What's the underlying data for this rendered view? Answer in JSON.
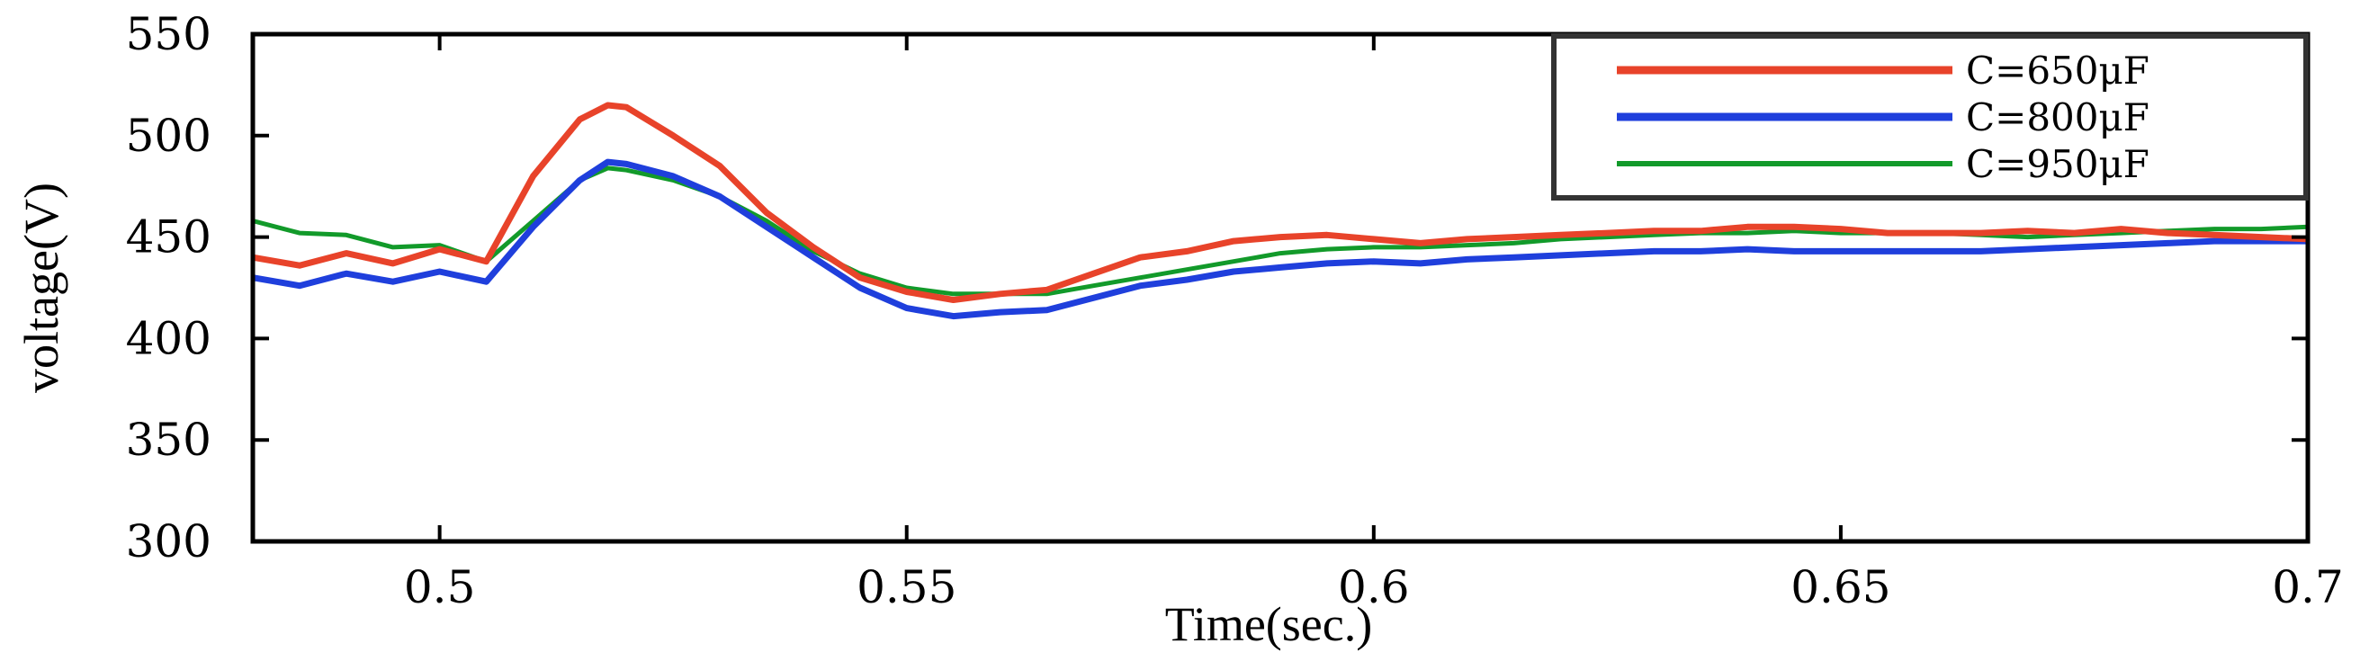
{
  "chart_data": {
    "type": "line",
    "title": "",
    "xlabel": "Time(sec.)",
    "ylabel": "voltage(V)",
    "xlim": [
      0.48,
      0.7
    ],
    "ylim": [
      300,
      550
    ],
    "xticks": [
      0.5,
      0.55,
      0.6,
      0.65,
      0.7
    ],
    "xtick_labels": [
      "0.5",
      "0.55",
      "0.6",
      "0.65",
      "0.7"
    ],
    "yticks": [
      300,
      350,
      400,
      450,
      500,
      550
    ],
    "ytick_labels": [
      "300",
      "350",
      "400",
      "450",
      "500",
      "550"
    ],
    "grid": false,
    "legend_position": "top-right",
    "series": [
      {
        "name": "C=650μF",
        "color": "#e8432a",
        "points": [
          [
            0.48,
            440
          ],
          [
            0.485,
            436
          ],
          [
            0.49,
            442
          ],
          [
            0.495,
            437
          ],
          [
            0.5,
            444
          ],
          [
            0.505,
            438
          ],
          [
            0.51,
            480
          ],
          [
            0.515,
            508
          ],
          [
            0.518,
            515
          ],
          [
            0.52,
            514
          ],
          [
            0.525,
            500
          ],
          [
            0.53,
            485
          ],
          [
            0.535,
            462
          ],
          [
            0.54,
            445
          ],
          [
            0.545,
            430
          ],
          [
            0.55,
            423
          ],
          [
            0.555,
            419
          ],
          [
            0.56,
            422
          ],
          [
            0.565,
            424
          ],
          [
            0.57,
            432
          ],
          [
            0.575,
            440
          ],
          [
            0.58,
            443
          ],
          [
            0.585,
            448
          ],
          [
            0.59,
            450
          ],
          [
            0.595,
            451
          ],
          [
            0.6,
            449
          ],
          [
            0.605,
            447
          ],
          [
            0.61,
            449
          ],
          [
            0.615,
            450
          ],
          [
            0.62,
            451
          ],
          [
            0.625,
            452
          ],
          [
            0.63,
            453
          ],
          [
            0.635,
            453
          ],
          [
            0.64,
            455
          ],
          [
            0.645,
            455
          ],
          [
            0.65,
            454
          ],
          [
            0.655,
            452
          ],
          [
            0.66,
            452
          ],
          [
            0.665,
            452
          ],
          [
            0.67,
            453
          ],
          [
            0.675,
            452
          ],
          [
            0.68,
            454
          ],
          [
            0.685,
            452
          ],
          [
            0.69,
            451
          ],
          [
            0.695,
            450
          ],
          [
            0.7,
            449
          ]
        ]
      },
      {
        "name": "C=800μF",
        "color": "#1f3fdc",
        "points": [
          [
            0.48,
            430
          ],
          [
            0.485,
            426
          ],
          [
            0.49,
            432
          ],
          [
            0.495,
            428
          ],
          [
            0.5,
            433
          ],
          [
            0.505,
            428
          ],
          [
            0.51,
            455
          ],
          [
            0.515,
            478
          ],
          [
            0.518,
            487
          ],
          [
            0.52,
            486
          ],
          [
            0.525,
            480
          ],
          [
            0.53,
            470
          ],
          [
            0.535,
            455
          ],
          [
            0.54,
            440
          ],
          [
            0.545,
            425
          ],
          [
            0.55,
            415
          ],
          [
            0.555,
            411
          ],
          [
            0.56,
            413
          ],
          [
            0.565,
            414
          ],
          [
            0.57,
            420
          ],
          [
            0.575,
            426
          ],
          [
            0.58,
            429
          ],
          [
            0.585,
            433
          ],
          [
            0.59,
            435
          ],
          [
            0.595,
            437
          ],
          [
            0.6,
            438
          ],
          [
            0.605,
            437
          ],
          [
            0.61,
            439
          ],
          [
            0.615,
            440
          ],
          [
            0.62,
            441
          ],
          [
            0.625,
            442
          ],
          [
            0.63,
            443
          ],
          [
            0.635,
            443
          ],
          [
            0.64,
            444
          ],
          [
            0.645,
            443
          ],
          [
            0.65,
            443
          ],
          [
            0.655,
            443
          ],
          [
            0.66,
            443
          ],
          [
            0.665,
            443
          ],
          [
            0.67,
            444
          ],
          [
            0.675,
            445
          ],
          [
            0.68,
            446
          ],
          [
            0.685,
            447
          ],
          [
            0.69,
            448
          ],
          [
            0.695,
            448
          ],
          [
            0.7,
            448
          ]
        ]
      },
      {
        "name": "C=950μF",
        "color": "#129a2a",
        "points": [
          [
            0.48,
            458
          ],
          [
            0.485,
            452
          ],
          [
            0.49,
            451
          ],
          [
            0.495,
            445
          ],
          [
            0.5,
            446
          ],
          [
            0.505,
            438
          ],
          [
            0.51,
            458
          ],
          [
            0.515,
            478
          ],
          [
            0.518,
            484
          ],
          [
            0.52,
            483
          ],
          [
            0.525,
            478
          ],
          [
            0.53,
            470
          ],
          [
            0.535,
            458
          ],
          [
            0.54,
            443
          ],
          [
            0.545,
            432
          ],
          [
            0.55,
            425
          ],
          [
            0.555,
            422
          ],
          [
            0.56,
            422
          ],
          [
            0.565,
            422
          ],
          [
            0.57,
            426
          ],
          [
            0.575,
            430
          ],
          [
            0.58,
            434
          ],
          [
            0.585,
            438
          ],
          [
            0.59,
            442
          ],
          [
            0.595,
            444
          ],
          [
            0.6,
            445
          ],
          [
            0.605,
            445
          ],
          [
            0.61,
            446
          ],
          [
            0.615,
            447
          ],
          [
            0.62,
            449
          ],
          [
            0.625,
            450
          ],
          [
            0.63,
            451
          ],
          [
            0.635,
            452
          ],
          [
            0.64,
            452
          ],
          [
            0.645,
            453
          ],
          [
            0.65,
            452
          ],
          [
            0.655,
            452
          ],
          [
            0.66,
            452
          ],
          [
            0.665,
            451
          ],
          [
            0.67,
            450
          ],
          [
            0.675,
            451
          ],
          [
            0.68,
            452
          ],
          [
            0.685,
            453
          ],
          [
            0.69,
            454
          ],
          [
            0.695,
            454
          ],
          [
            0.7,
            455
          ]
        ]
      }
    ]
  }
}
